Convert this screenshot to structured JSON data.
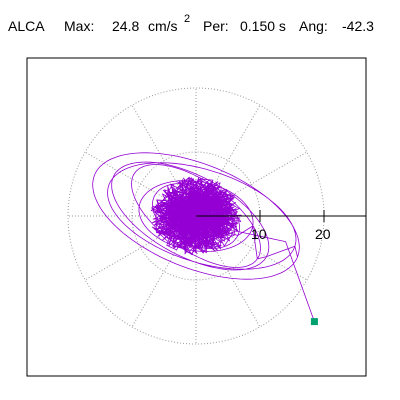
{
  "header": {
    "station": "ALCA",
    "max_label": "Max:",
    "max_value": "24.8",
    "max_unit": "cm/s",
    "max_unit_exponent": "2",
    "per_label": "Per:",
    "per_value": "0.150 s",
    "ang_label": "Ang:",
    "ang_value": "-42.3"
  },
  "colors": {
    "trace": "#9400d3",
    "end_marker": "#00a070",
    "grid": "#999999",
    "axis": "#000000",
    "frame": "#000000"
  },
  "chart_data": {
    "type": "polar-particle-motion",
    "title": "",
    "radial_ticks": [
      10,
      20
    ],
    "tick_labels": [
      "10",
      "20"
    ],
    "angle_spokes_deg": [
      0,
      30,
      60,
      90,
      120,
      150,
      180,
      210,
      240,
      270,
      300,
      330
    ],
    "grid_rings": [
      10,
      20
    ],
    "units": "cm/s2",
    "max_amplitude": 24.8,
    "angle": -42.3,
    "trace_orbits": [
      {
        "amplitude_x": 19,
        "amplitude_y": 9,
        "tilt_deg": -22,
        "center": [
          0,
          0
        ]
      },
      {
        "amplitude_x": 17,
        "amplitude_y": 8,
        "tilt_deg": -18,
        "center": [
          1,
          0
        ]
      },
      {
        "amplitude_x": 15,
        "amplitude_y": 7,
        "tilt_deg": -28,
        "center": [
          -1,
          0
        ]
      },
      {
        "amplitude_x": 13,
        "amplitude_y": 6,
        "tilt_deg": -35,
        "center": [
          0,
          0
        ]
      },
      {
        "amplitude_x": 10,
        "amplitude_y": 6,
        "tilt_deg": -10,
        "center": [
          0,
          0
        ]
      },
      {
        "amplitude_x": 8,
        "amplitude_y": 5,
        "tilt_deg": -25,
        "center": [
          0,
          0
        ]
      }
    ],
    "end_point": [
      18.5,
      -16.5
    ]
  }
}
